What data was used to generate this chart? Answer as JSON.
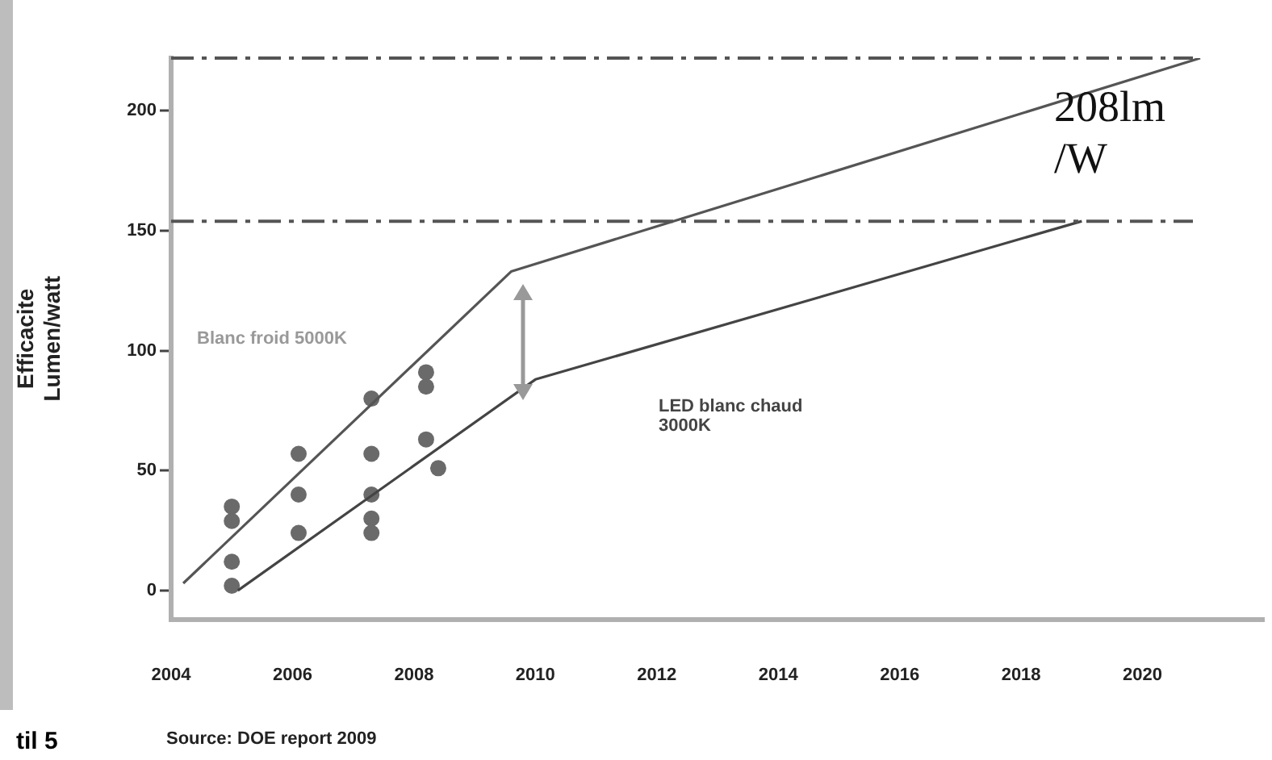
{
  "chart_data": {
    "type": "line",
    "ylabel": "Efficacite Lumen/watt",
    "series": [
      {
        "color": "#555555",
        "x": [
          2004.2,
          2009.6,
          2020.95
        ],
        "values": [
          3,
          133,
          222
        ]
      },
      {
        "color": "#444444",
        "x": [
          2005.1,
          2010,
          2019
        ],
        "values": [
          0,
          88,
          154
        ]
      },
      {
        "type": "scatter",
        "marker": "circle",
        "color": "#6a6a6a",
        "x": [
          2005,
          2005,
          2005,
          2005,
          2006.1,
          2006.1,
          2006.1,
          2007.3,
          2007.3,
          2007.3,
          2007.3,
          2007.3,
          2008.2,
          2008.2,
          2008.2,
          2008.4
        ],
        "values": [
          35,
          29,
          12,
          2,
          57,
          40,
          24,
          80,
          57,
          40,
          30,
          24,
          91,
          85,
          63,
          51
        ]
      }
    ],
    "xlim": [
      2004,
      2022
    ],
    "xticks": [
      2004,
      2006,
      2008,
      2010,
      2012,
      2014,
      2016,
      2018,
      2020
    ],
    "ylim": [
      -12,
      222
    ],
    "yticks": [
      0,
      50,
      100,
      150,
      200
    ],
    "grid": false,
    "legend": false,
    "ref_lines": [
      {
        "axis": "y",
        "value": 222,
        "color": "#555555",
        "line_style": "dashed"
      },
      {
        "axis": "y",
        "value": 154,
        "color": "#555555",
        "line_style": "dashed"
      }
    ],
    "annotations": [
      "Blanc froid 5000K",
      "LED blanc chaud 3000K",
      "208lm /W",
      "til 5",
      "Source: DOE report 2009"
    ]
  }
}
